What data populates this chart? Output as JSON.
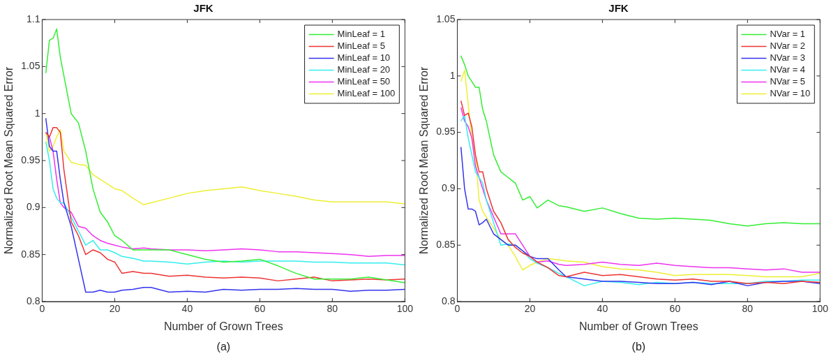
{
  "chart_data": [
    {
      "type": "line",
      "title": "JFK",
      "xlabel": "Number of Grown Trees",
      "ylabel": "Normalized Root Mean Squared Error",
      "annotations": [
        "(a)"
      ],
      "x": [
        1,
        2,
        3,
        4,
        5,
        6,
        8,
        10,
        12,
        14,
        16,
        18,
        20,
        22,
        25,
        28,
        30,
        35,
        40,
        45,
        50,
        55,
        60,
        65,
        70,
        75,
        80,
        85,
        90,
        95,
        100
      ],
      "series": [
        {
          "name": "MinLeaf = 1",
          "color": "#33ee33",
          "values": [
            1.043,
            1.078,
            1.08,
            1.09,
            1.06,
            1.04,
            1.0,
            0.99,
            0.96,
            0.92,
            0.895,
            0.885,
            0.87,
            0.865,
            0.855,
            0.855,
            0.855,
            0.855,
            0.85,
            0.845,
            0.842,
            0.843,
            0.845,
            0.838,
            0.83,
            0.824,
            0.824,
            0.824,
            0.826,
            0.823,
            0.82
          ]
        },
        {
          "name": "MinLeaf = 5",
          "color": "#ee3333",
          "values": [
            0.98,
            0.975,
            0.985,
            0.985,
            0.98,
            0.94,
            0.885,
            0.87,
            0.85,
            0.855,
            0.852,
            0.845,
            0.842,
            0.83,
            0.832,
            0.83,
            0.83,
            0.827,
            0.828,
            0.826,
            0.825,
            0.826,
            0.825,
            0.822,
            0.824,
            0.826,
            0.822,
            0.823,
            0.824,
            0.823,
            0.824
          ]
        },
        {
          "name": "MinLeaf = 10",
          "color": "#3333ee",
          "values": [
            0.995,
            0.965,
            0.96,
            0.96,
            0.93,
            0.905,
            0.88,
            0.845,
            0.81,
            0.81,
            0.812,
            0.81,
            0.81,
            0.812,
            0.813,
            0.815,
            0.815,
            0.81,
            0.811,
            0.81,
            0.813,
            0.812,
            0.813,
            0.813,
            0.814,
            0.813,
            0.813,
            0.811,
            0.812,
            0.812,
            0.813
          ]
        },
        {
          "name": "MinLeaf = 20",
          "color": "#33eeee",
          "values": [
            0.97,
            0.95,
            0.92,
            0.91,
            0.905,
            0.905,
            0.89,
            0.875,
            0.86,
            0.865,
            0.855,
            0.855,
            0.852,
            0.848,
            0.846,
            0.843,
            0.843,
            0.842,
            0.84,
            0.842,
            0.843,
            0.842,
            0.843,
            0.843,
            0.843,
            0.842,
            0.842,
            0.841,
            0.841,
            0.841,
            0.839
          ]
        },
        {
          "name": "MinLeaf = 50",
          "color": "#ee33ee",
          "values": [
            0.98,
            0.975,
            0.96,
            0.93,
            0.905,
            0.9,
            0.895,
            0.88,
            0.878,
            0.87,
            0.865,
            0.862,
            0.86,
            0.858,
            0.856,
            0.857,
            0.856,
            0.855,
            0.855,
            0.854,
            0.855,
            0.856,
            0.855,
            0.853,
            0.853,
            0.852,
            0.851,
            0.85,
            0.848,
            0.849,
            0.849
          ]
        },
        {
          "name": "MinLeaf = 100",
          "color": "#eeee33",
          "values": [
            0.98,
            0.96,
            0.965,
            0.975,
            0.983,
            0.96,
            0.948,
            0.946,
            0.945,
            0.935,
            0.93,
            0.925,
            0.92,
            0.918,
            0.91,
            0.903,
            0.905,
            0.91,
            0.915,
            0.918,
            0.92,
            0.922,
            0.918,
            0.915,
            0.912,
            0.908,
            0.906,
            0.906,
            0.906,
            0.906,
            0.904
          ]
        }
      ],
      "xlim": [
        0,
        100
      ],
      "xticks": [
        0,
        20,
        40,
        60,
        80,
        100
      ],
      "ylim": [
        0.8,
        1.1
      ],
      "yticks": [
        0.8,
        0.85,
        0.9,
        0.95,
        1,
        1.05,
        1.1
      ],
      "legend": "top right",
      "grid": false
    },
    {
      "type": "line",
      "title": "JFK",
      "xlabel": "Number of Grown Trees",
      "ylabel": "Normalized Root Mean Squared Error",
      "annotations": [
        "(b)"
      ],
      "x": [
        1,
        2,
        3,
        4,
        5,
        6,
        7,
        8,
        10,
        12,
        14,
        16,
        18,
        20,
        22,
        25,
        28,
        30,
        35,
        40,
        45,
        50,
        55,
        60,
        65,
        70,
        75,
        80,
        85,
        90,
        95,
        100
      ],
      "series": [
        {
          "name": "NVar = 1",
          "color": "#33ee33",
          "values": [
            1.018,
            1.01,
            1.0,
            0.995,
            0.99,
            0.99,
            0.97,
            0.96,
            0.93,
            0.915,
            0.91,
            0.905,
            0.89,
            0.893,
            0.883,
            0.89,
            0.885,
            0.884,
            0.88,
            0.883,
            0.878,
            0.874,
            0.873,
            0.874,
            0.873,
            0.872,
            0.869,
            0.867,
            0.869,
            0.87,
            0.869,
            0.869
          ]
        },
        {
          "name": "NVar = 2",
          "color": "#ee3333",
          "values": [
            0.978,
            0.965,
            0.967,
            0.955,
            0.93,
            0.915,
            0.915,
            0.9,
            0.88,
            0.87,
            0.855,
            0.848,
            0.843,
            0.84,
            0.835,
            0.83,
            0.823,
            0.822,
            0.826,
            0.823,
            0.824,
            0.822,
            0.82,
            0.819,
            0.82,
            0.818,
            0.818,
            0.816,
            0.817,
            0.816,
            0.818,
            0.817
          ]
        },
        {
          "name": "NVar = 3",
          "color": "#3333ee",
          "values": [
            0.937,
            0.9,
            0.882,
            0.882,
            0.88,
            0.868,
            0.87,
            0.873,
            0.86,
            0.855,
            0.85,
            0.85,
            0.845,
            0.84,
            0.838,
            0.838,
            0.828,
            0.822,
            0.82,
            0.818,
            0.818,
            0.817,
            0.816,
            0.816,
            0.817,
            0.815,
            0.818,
            0.814,
            0.817,
            0.818,
            0.818,
            0.816
          ]
        },
        {
          "name": "NVar = 4",
          "color": "#33eeee",
          "values": [
            0.96,
            0.965,
            0.945,
            0.93,
            0.915,
            0.91,
            0.905,
            0.89,
            0.87,
            0.85,
            0.851,
            0.85,
            0.845,
            0.838,
            0.834,
            0.83,
            0.825,
            0.822,
            0.814,
            0.818,
            0.817,
            0.815,
            0.817,
            0.816,
            0.817,
            0.816,
            0.816,
            0.816,
            0.818,
            0.818,
            0.819,
            0.819
          ]
        },
        {
          "name": "NVar = 5",
          "color": "#ee33ee",
          "values": [
            0.972,
            0.96,
            0.955,
            0.945,
            0.92,
            0.91,
            0.9,
            0.89,
            0.875,
            0.86,
            0.86,
            0.86,
            0.85,
            0.84,
            0.835,
            0.836,
            0.833,
            0.832,
            0.833,
            0.835,
            0.833,
            0.832,
            0.834,
            0.832,
            0.831,
            0.83,
            0.83,
            0.829,
            0.828,
            0.829,
            0.826,
            0.826
          ]
        },
        {
          "name": "NVar = 10",
          "color": "#eeee33",
          "values": [
            0.995,
            1.005,
            0.975,
            0.945,
            0.93,
            0.89,
            0.88,
            0.875,
            0.865,
            0.855,
            0.85,
            0.84,
            0.828,
            0.832,
            0.835,
            0.838,
            0.837,
            0.836,
            0.835,
            0.831,
            0.829,
            0.828,
            0.826,
            0.823,
            0.824,
            0.824,
            0.824,
            0.823,
            0.822,
            0.822,
            0.822,
            0.825
          ]
        }
      ],
      "xlim": [
        0,
        100
      ],
      "xticks": [
        0,
        20,
        40,
        60,
        80,
        100
      ],
      "ylim": [
        0.8,
        1.05
      ],
      "yticks": [
        0.8,
        0.85,
        0.9,
        0.95,
        1,
        1.05
      ],
      "legend": "top right",
      "grid": false
    }
  ]
}
